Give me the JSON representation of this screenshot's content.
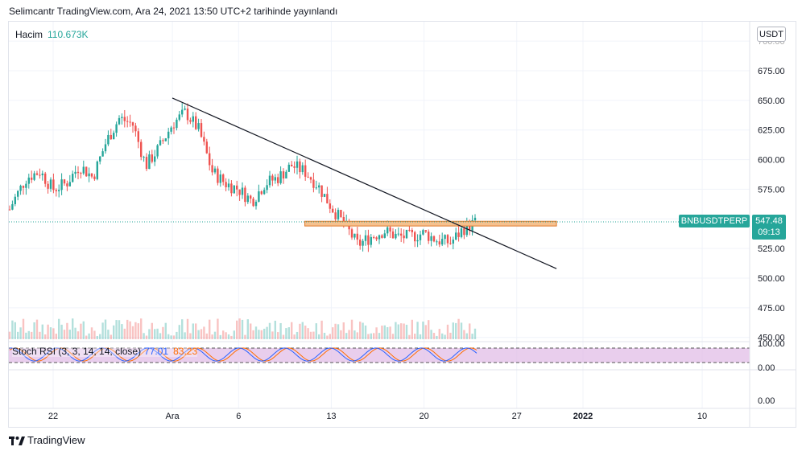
{
  "header": {
    "text": "Selimcantr TradingView.com, Ara 24, 2021 13:50 UTC+2 tarihinde yayınlandı"
  },
  "volume": {
    "label": "Hacim",
    "value": "110.673K"
  },
  "currency": "USDT",
  "symbol_tag": "BNBUSDTPERP",
  "price_tag": {
    "price": "547.48",
    "countdown": "09:13"
  },
  "stoch": {
    "label": "Stoch RSI (3, 3, 14, 14, close)",
    "k": "77.01",
    "d": "83.23"
  },
  "footer": {
    "brand": "TradingView",
    "logo_icon": "tradingview-logo-icon"
  },
  "colors": {
    "up": "#26a69a",
    "down": "#ef5350",
    "trend": "#131722",
    "zone_fill": "#f5c18f",
    "zone_border": "#e07b2c",
    "stoch_bg": "#e1bee7",
    "k": "#2962ff",
    "d": "#ff6d00"
  },
  "chart_data": {
    "type": "candlestick",
    "x_tick_labels": [
      "22",
      "Ara",
      "6",
      "13",
      "20",
      "27",
      "2022",
      "10"
    ],
    "y_tick_labels": [
      "700.00",
      "675.00",
      "650.00",
      "625.00",
      "600.00",
      "575.00",
      "550.00",
      "525.00",
      "500.00",
      "475.00",
      "450.00"
    ],
    "ylim": [
      450,
      705
    ],
    "last_price": 547.48,
    "trendline": {
      "start": {
        "date": "2021-12-01",
        "price": 652
      },
      "end": {
        "date": "2021-12-30",
        "price": 508
      }
    },
    "resistance_zone": {
      "from_date": "2021-12-11",
      "to_date": "2021-12-30",
      "low": 544,
      "high": 548
    },
    "price_path": [
      [
        "2021-11-18",
        540
      ],
      [
        "2021-11-19",
        565
      ],
      [
        "2021-11-20",
        585
      ],
      [
        "2021-11-21",
        590
      ],
      [
        "2021-11-22",
        575
      ],
      [
        "2021-11-23",
        580
      ],
      [
        "2021-11-24",
        595
      ],
      [
        "2021-11-25",
        585
      ],
      [
        "2021-11-26",
        615
      ],
      [
        "2021-11-27",
        635
      ],
      [
        "2021-11-28",
        630
      ],
      [
        "2021-11-29",
        595
      ],
      [
        "2021-11-30",
        610
      ],
      [
        "2021-12-01",
        630
      ],
      [
        "2021-12-02",
        640
      ],
      [
        "2021-12-03",
        625
      ],
      [
        "2021-12-04",
        590
      ],
      [
        "2021-12-05",
        580
      ],
      [
        "2021-12-06",
        575
      ],
      [
        "2021-12-07",
        565
      ],
      [
        "2021-12-08",
        580
      ],
      [
        "2021-12-09",
        585
      ],
      [
        "2021-12-10",
        595
      ],
      [
        "2021-12-11",
        590
      ],
      [
        "2021-12-12",
        578
      ],
      [
        "2021-12-13",
        560
      ],
      [
        "2021-12-14",
        545
      ],
      [
        "2021-12-15",
        528
      ],
      [
        "2021-12-16",
        535
      ],
      [
        "2021-12-17",
        540
      ],
      [
        "2021-12-18",
        535
      ],
      [
        "2021-12-19",
        535
      ],
      [
        "2021-12-20",
        538
      ],
      [
        "2021-12-21",
        532
      ],
      [
        "2021-12-22",
        530
      ],
      [
        "2021-12-23",
        542
      ],
      [
        "2021-12-24",
        547.48
      ]
    ],
    "stoch_levels": {
      "upper": 80,
      "lower": 20
    },
    "stoch_tick_labels": [
      "100.00",
      "0.00"
    ],
    "extra_axis_label": "0.00",
    "grid": true
  }
}
